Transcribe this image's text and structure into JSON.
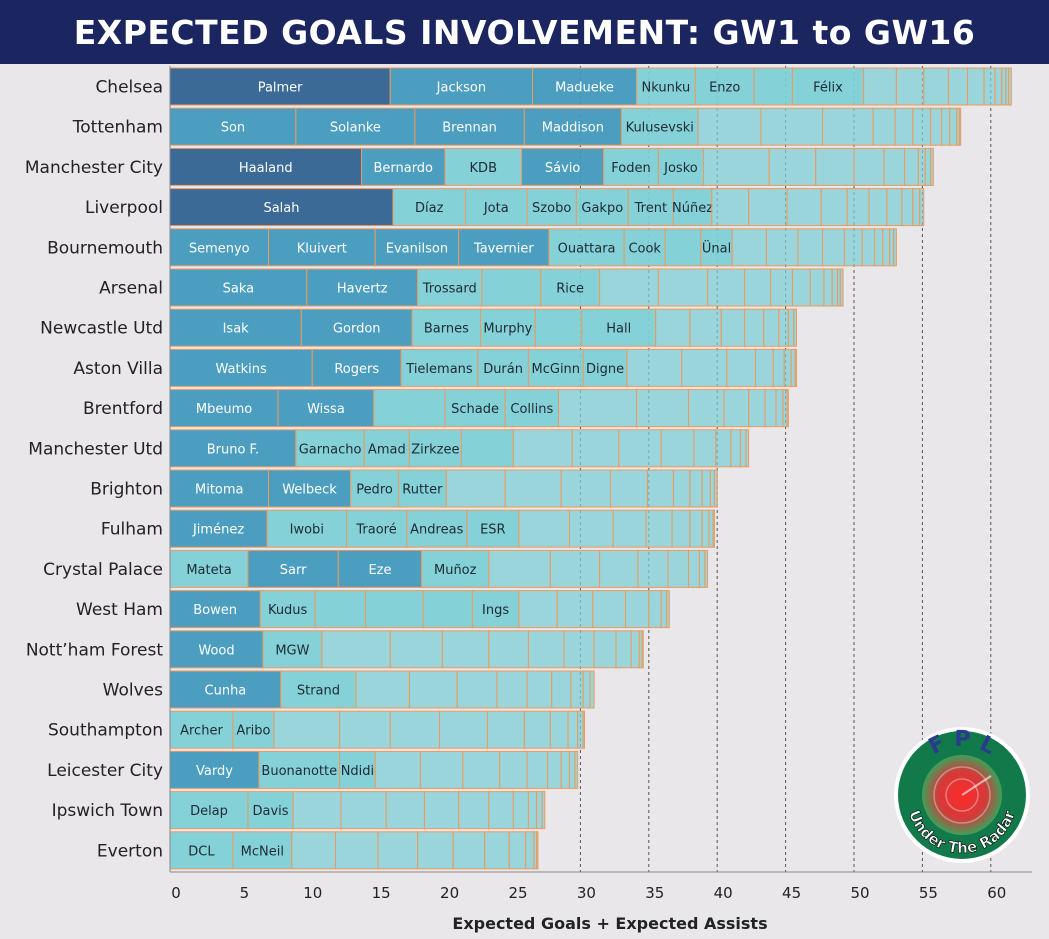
{
  "title": "EXPECTED GOALS INVOLVEMENT: GW1 to GW16",
  "colors": {
    "header_bg": "#1b2560",
    "bar_light": "#7ccfd6",
    "bar_mid": "#3e98bc",
    "bar_dark": "#2b5f8f",
    "segment_border": "#ee9a5c",
    "text_dark": "#222222"
  },
  "logo": {
    "top_text": "F P L",
    "bottom_text": "Under The Radar",
    "icon": "radar-icon"
  },
  "chart_data": {
    "type": "bar",
    "orientation": "horizontal",
    "stacked": true,
    "title": "EXPECTED GOALS INVOLVEMENT: GW1 to GW16",
    "xlabel": "Expected Goals + Expected Assists",
    "ylabel": "",
    "xlim": [
      0,
      63
    ],
    "xticks": [
      0,
      5,
      10,
      15,
      20,
      25,
      30,
      35,
      40,
      45,
      50,
      55,
      60
    ],
    "reference_lines": [
      30,
      35,
      40,
      45,
      50,
      55,
      60
    ],
    "categories": [
      "Chelsea",
      "Tottenham",
      "Manchester City",
      "Liverpool",
      "Bournemouth",
      "Arsenal",
      "Newcastle Utd",
      "Aston Villa",
      "Brentford",
      "Manchester Utd",
      "Brighton",
      "Fulham",
      "Crystal Palace",
      "West Ham",
      "Nott’ham Forest",
      "Wolves",
      "Southampton",
      "Leicester City",
      "Ipswich Town",
      "Everton"
    ],
    "teams": [
      {
        "team": "Chelsea",
        "total": 61.5,
        "players": [
          {
            "name": "Palmer",
            "value": 16.1
          },
          {
            "name": "Jackson",
            "value": 10.4
          },
          {
            "name": "Madueke",
            "value": 7.6
          },
          {
            "name": "Nkunku",
            "value": 4.3
          },
          {
            "name": "Enzo",
            "value": 4.3
          },
          {
            "name": "",
            "value": 2.8
          },
          {
            "name": "Félix",
            "value": 5.2
          }
        ],
        "others": [
          2.4,
          2.0,
          1.8,
          1.4,
          1.2,
          0.8,
          0.5,
          0.3,
          0.2,
          0.2
        ]
      },
      {
        "team": "Tottenham",
        "total": 56.0,
        "players": [
          {
            "name": "Son",
            "value": 9.2
          },
          {
            "name": "Solanke",
            "value": 8.7
          },
          {
            "name": "Brennan",
            "value": 8.0
          },
          {
            "name": "Maddison",
            "value": 7.1
          },
          {
            "name": "Kulusevski",
            "value": 5.6
          }
        ],
        "others": [
          4.6,
          4.5,
          3.7,
          1.6,
          1.3,
          1.3,
          0.8,
          0.6,
          0.5,
          0.2,
          0.1
        ]
      },
      {
        "team": "Manchester City",
        "total": 55.8,
        "players": [
          {
            "name": "Haaland",
            "value": 14.0
          },
          {
            "name": "Bernardo",
            "value": 6.1
          },
          {
            "name": "KDB",
            "value": 5.6
          },
          {
            "name": "Sávio",
            "value": 6.0
          },
          {
            "name": "Foden",
            "value": 4.0
          },
          {
            "name": "Josko",
            "value": 3.3
          }
        ],
        "others": [
          4.8,
          3.4,
          2.8,
          2.2,
          1.5,
          1.0,
          0.5,
          0.4,
          0.2
        ]
      },
      {
        "team": "Liverpool",
        "total": 53.8,
        "players": [
          {
            "name": "Salah",
            "value": 16.3
          },
          {
            "name": "Díaz",
            "value": 5.3
          },
          {
            "name": "Jota",
            "value": 4.5
          },
          {
            "name": "Szobo",
            "value": 3.6
          },
          {
            "name": "Gakpo",
            "value": 3.8
          },
          {
            "name": "Trent",
            "value": 3.3
          },
          {
            "name": "Núñez",
            "value": 2.8
          }
        ],
        "others": [
          2.7,
          2.8,
          2.5,
          1.9,
          1.6,
          1.3,
          1.1,
          0.8,
          0.5,
          0.3
        ]
      },
      {
        "team": "Bournemouth",
        "total": 52.3,
        "players": [
          {
            "name": "Semenyo",
            "value": 7.2
          },
          {
            "name": "Kluivert",
            "value": 7.8
          },
          {
            "name": "Evanilson",
            "value": 6.1
          },
          {
            "name": "Tavernier",
            "value": 6.6
          },
          {
            "name": "Ouattara",
            "value": 5.5
          },
          {
            "name": "Cook",
            "value": 3.0
          },
          {
            "name": "",
            "value": 2.6
          },
          {
            "name": "Ünal",
            "value": 2.3
          }
        ],
        "others": [
          2.5,
          2.3,
          1.8,
          1.6,
          1.3,
          0.9,
          0.6,
          0.5,
          0.3,
          0.2
        ]
      },
      {
        "team": "Arsenal",
        "total": 49.2,
        "players": [
          {
            "name": "Saka",
            "value": 10.0
          },
          {
            "name": "Havertz",
            "value": 8.1
          },
          {
            "name": "Trossard",
            "value": 4.7
          },
          {
            "name": "",
            "value": 4.3
          },
          {
            "name": "Rice",
            "value": 4.3
          }
        ],
        "others": [
          4.3,
          3.6,
          2.7,
          1.9,
          1.6,
          1.3,
          1.0,
          0.6,
          0.4,
          0.2,
          0.2
        ]
      },
      {
        "team": "Newcastle Utd",
        "total": 45.8,
        "players": [
          {
            "name": "Isak",
            "value": 9.6
          },
          {
            "name": "Gordon",
            "value": 8.1
          },
          {
            "name": "Barnes",
            "value": 5.0
          },
          {
            "name": "Murphy",
            "value": 4.0
          },
          {
            "name": "",
            "value": 3.4
          },
          {
            "name": "Hall",
            "value": 5.4
          }
        ],
        "others": [
          2.5,
          2.3,
          1.7,
          1.4,
          1.1,
          0.7,
          0.4,
          0.2
        ]
      },
      {
        "team": "Aston Villa",
        "total": 45.8,
        "players": [
          {
            "name": "Watkins",
            "value": 10.4
          },
          {
            "name": "Rogers",
            "value": 6.5
          },
          {
            "name": "Tielemans",
            "value": 5.6
          },
          {
            "name": "Durán",
            "value": 3.7
          },
          {
            "name": "McGinn",
            "value": 4.0
          },
          {
            "name": "Digne",
            "value": 3.2
          }
        ],
        "others": [
          4.0,
          3.3,
          2.1,
          1.3,
          0.8,
          0.5,
          0.3,
          0.1
        ]
      },
      {
        "team": "Brentford",
        "total": 45.2,
        "players": [
          {
            "name": "Mbeumo",
            "value": 7.9
          },
          {
            "name": "Wissa",
            "value": 7.0
          },
          {
            "name": "",
            "value": 5.2
          },
          {
            "name": "Schade",
            "value": 4.4
          },
          {
            "name": "Collins",
            "value": 3.9
          }
        ],
        "others": [
          5.7,
          3.8,
          2.6,
          1.8,
          1.2,
          0.8,
          0.5,
          0.3,
          0.1
        ]
      },
      {
        "team": "Manchester Utd",
        "total": 42.3,
        "players": [
          {
            "name": "Bruno F.",
            "value": 9.2
          },
          {
            "name": "Garnacho",
            "value": 5.0
          },
          {
            "name": "Amad",
            "value": 3.3
          },
          {
            "name": "Zirkzee",
            "value": 3.8
          },
          {
            "name": "",
            "value": 3.8
          }
        ],
        "others": [
          4.3,
          3.4,
          3.1,
          2.4,
          1.6,
          1.1,
          0.7,
          0.4,
          0.2
        ]
      },
      {
        "team": "Brighton",
        "total": 40.0,
        "players": [
          {
            "name": "Mitoma",
            "value": 7.2
          },
          {
            "name": "Welbeck",
            "value": 6.0
          },
          {
            "name": "Pedro",
            "value": 3.5
          },
          {
            "name": "Rutter",
            "value": 3.5
          }
        ],
        "others": [
          4.3,
          4.1,
          3.6,
          2.7,
          1.9,
          1.2,
          0.9,
          0.6,
          0.3,
          0.2
        ]
      },
      {
        "team": "Fulham",
        "total": 39.8,
        "players": [
          {
            "name": "Jiménez",
            "value": 7.1
          },
          {
            "name": "Iwobi",
            "value": 5.8
          },
          {
            "name": "Traoré",
            "value": 4.4
          },
          {
            "name": "Andreas",
            "value": 4.4
          },
          {
            "name": "ESR",
            "value": 3.8
          }
        ],
        "others": [
          3.7,
          3.2,
          2.4,
          1.9,
          1.3,
          0.9,
          0.5,
          0.3,
          0.1
        ]
      },
      {
        "team": "Crystal Palace",
        "total": 39.3,
        "players": [
          {
            "name": "Mateta",
            "value": 5.7
          },
          {
            "name": "Sarr",
            "value": 6.6
          },
          {
            "name": "Eze",
            "value": 6.1
          },
          {
            "name": "Muñoz",
            "value": 4.9
          }
        ],
        "others": [
          4.5,
          3.6,
          2.8,
          2.2,
          1.5,
          0.8,
          0.4,
          0.2
        ]
      },
      {
        "team": "West Ham",
        "total": 36.5,
        "players": [
          {
            "name": "Bowen",
            "value": 6.6
          },
          {
            "name": "Kudus",
            "value": 4.0
          },
          {
            "name": "",
            "value": 3.7
          },
          {
            "name": "",
            "value": 4.2
          },
          {
            "name": "",
            "value": 3.6
          },
          {
            "name": "Ings",
            "value": 3.4
          }
        ],
        "others": [
          2.8,
          2.6,
          2.4,
          1.7,
          0.9,
          0.4,
          0.2
        ]
      },
      {
        "team": "Nott’ham Forest",
        "total": 34.6,
        "players": [
          {
            "name": "Wood",
            "value": 6.8
          },
          {
            "name": "MGW",
            "value": 4.3
          }
        ],
        "others": [
          5.0,
          3.8,
          3.4,
          2.9,
          2.6,
          2.2,
          1.6,
          1.1,
          0.6,
          0.2,
          0.1
        ]
      },
      {
        "team": "Wolves",
        "total": 31.0,
        "players": [
          {
            "name": "Cunha",
            "value": 8.1
          },
          {
            "name": "Strand",
            "value": 5.5
          }
        ],
        "others": [
          3.9,
          3.5,
          2.9,
          2.2,
          1.8,
          1.4,
          0.9,
          0.5,
          0.3
        ]
      },
      {
        "team": "Southampton",
        "total": 30.3,
        "players": [
          {
            "name": "Archer",
            "value": 4.6
          },
          {
            "name": "Aribo",
            "value": 3.0
          }
        ],
        "others": [
          4.8,
          3.7,
          3.6,
          3.5,
          2.7,
          1.9,
          1.3,
          0.7,
          0.4,
          0.1
        ]
      },
      {
        "team": "Leicester City",
        "total": 29.8,
        "players": [
          {
            "name": "Vardy",
            "value": 6.5
          },
          {
            "name": "Buonanotte",
            "value": 5.9
          },
          {
            "name": "Ndidi",
            "value": 2.6
          }
        ],
        "others": [
          3.3,
          3.1,
          2.7,
          2.0,
          1.5,
          1.0,
          0.6,
          0.4,
          0.2
        ]
      },
      {
        "team": "Ipswich Town",
        "total": 27.4,
        "players": [
          {
            "name": "Delap",
            "value": 5.7
          },
          {
            "name": "Davis",
            "value": 3.3
          }
        ],
        "others": [
          3.5,
          3.3,
          2.8,
          2.5,
          2.2,
          1.8,
          1.1,
          0.6,
          0.4,
          0.2
        ]
      },
      {
        "team": "Everton",
        "total": 26.9,
        "players": [
          {
            "name": "DCL",
            "value": 4.6
          },
          {
            "name": "McNeil",
            "value": 4.3
          }
        ],
        "others": [
          3.2,
          3.1,
          2.9,
          2.6,
          2.3,
          1.8,
          1.2,
          0.6,
          0.2,
          0.1
        ]
      }
    ]
  }
}
